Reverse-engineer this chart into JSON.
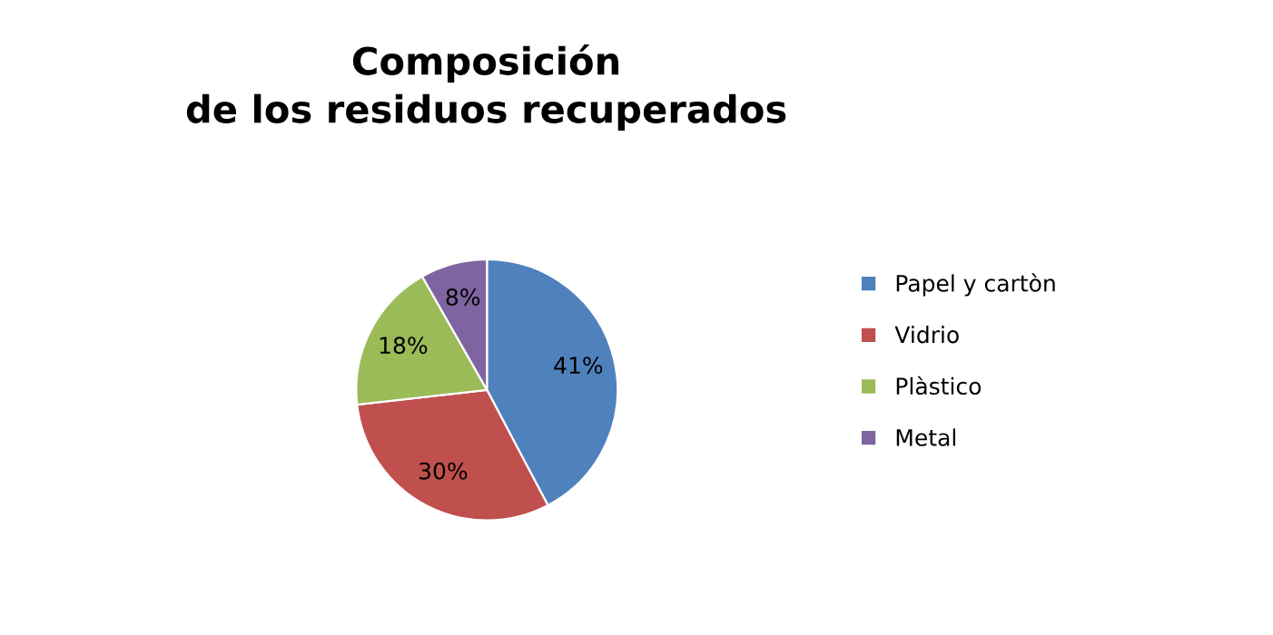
{
  "chart_data": {
    "type": "pie",
    "title": "Composición\nde los residuos recuperados",
    "categories": [
      "Papel y cartòn",
      "Vidrio",
      "Plàstico",
      "Metal"
    ],
    "values": [
      41,
      30,
      18,
      8
    ],
    "value_labels": [
      "41%",
      "30%",
      "18%",
      "8%"
    ],
    "colors": [
      "#4f81bd",
      "#c0504d",
      "#9bbb59",
      "#8064a2"
    ],
    "legend": "right"
  }
}
